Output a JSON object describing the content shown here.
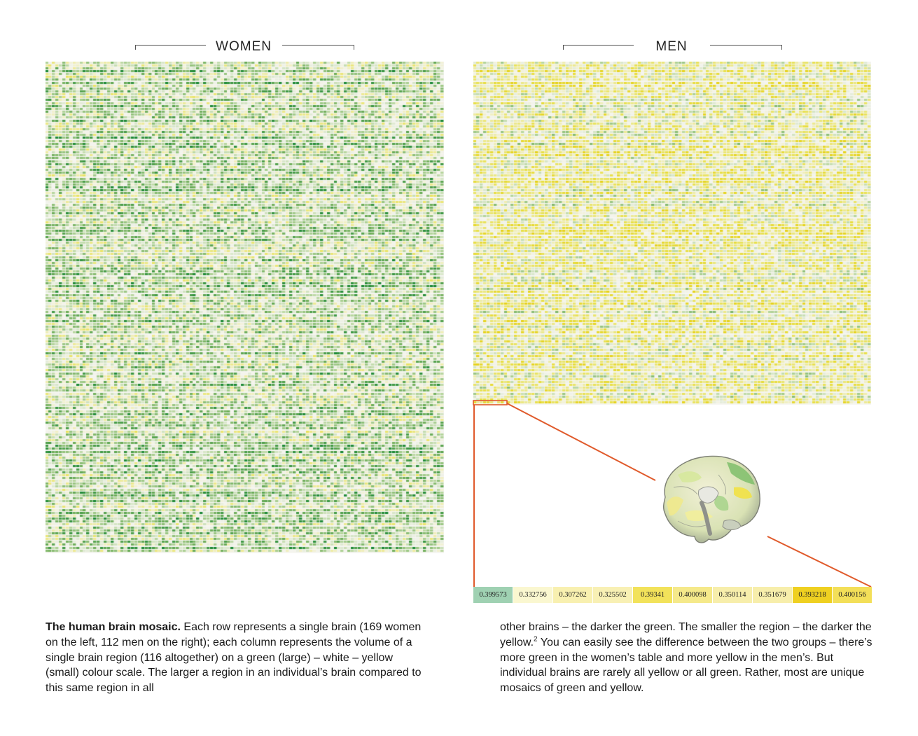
{
  "headings": {
    "women": "WOMEN",
    "men": "MEN"
  },
  "figure": {
    "palette": {
      "green_dark": "#1e8a36",
      "green_mid": "#6fae5a",
      "green_light": "#b9d7a0",
      "white": "#f4f4ee",
      "yellow_light": "#ece98f",
      "yellow_mid": "#e8e04a",
      "yellow_dark": "#e6d21c",
      "callout_line": "#e05a2b",
      "strip_first_cell": "#9fd1b2"
    }
  },
  "value_strip": {
    "values": [
      {
        "text": "0.399573",
        "color": "#9fd1b2"
      },
      {
        "text": "0.332756",
        "color": "#faf7d0"
      },
      {
        "text": "0.307262",
        "color": "#f8f0b0"
      },
      {
        "text": "0.325502",
        "color": "#f8f0b4"
      },
      {
        "text": "0.39341",
        "color": "#f2e25a"
      },
      {
        "text": "0.400098",
        "color": "#f5e98a"
      },
      {
        "text": "0.350114",
        "color": "#f7eeab"
      },
      {
        "text": "0.351679",
        "color": "#f7eeab"
      },
      {
        "text": "0.393218",
        "color": "#efd021"
      },
      {
        "text": "0.400156",
        "color": "#f3df58"
      }
    ]
  },
  "caption": {
    "title": "The human brain mosaic.",
    "left_body": "Each row represents a single brain (169 women on the left, 112 men on the right); each column represents the volume of a single brain region (116 altogether) on a green (large) – white – yellow (small) colour scale. The larger a region in an individual’s brain compared to this same region in all",
    "right_part1": "other brains – the darker the green. The smaller the region – the darker the yellow.",
    "footnote": "2",
    "right_part2": " You can easily see the difference between the two groups – there’s more green in the women’s table and more yellow in the men’s. But individual brains are rarely all yellow or all green. Rather, most are unique mosaics of green and yellow."
  }
}
